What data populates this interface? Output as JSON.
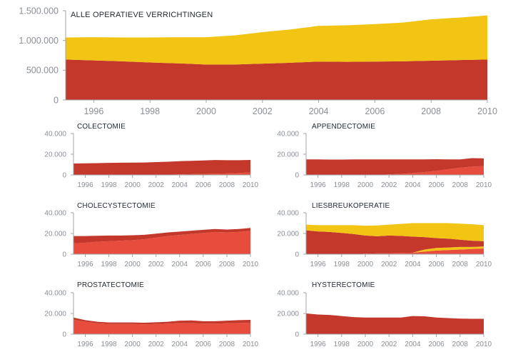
{
  "colors": {
    "top": "#f2c413",
    "mid": "#c3382b",
    "bottom": "#e84c3d",
    "axis": "#a0a4aa",
    "text": "#8a8f96",
    "title": "#222a33"
  },
  "chart_data": [
    {
      "type": "area",
      "title": "ALLE OPERATIEVE VERRICHTINGEN",
      "x": [
        1995,
        1996,
        1997,
        1998,
        1999,
        2000,
        2001,
        2002,
        2003,
        2004,
        2005,
        2006,
        2007,
        2008,
        2009,
        2010
      ],
      "stacking": "stacked",
      "series": [
        {
          "color": "#c3382b",
          "values": [
            680000,
            665000,
            650000,
            630000,
            615000,
            595000,
            595000,
            610000,
            625000,
            645000,
            640000,
            645000,
            650000,
            660000,
            670000,
            680000
          ]
        },
        {
          "color": "#f2c413",
          "values": [
            370000,
            390000,
            400000,
            420000,
            440000,
            460000,
            490000,
            530000,
            560000,
            600000,
            615000,
            630000,
            650000,
            695000,
            715000,
            740000
          ]
        }
      ],
      "y_ticks": [
        "0",
        "500.000",
        "1.000.000",
        "1.500.000"
      ],
      "y_tick_values": [
        0,
        500000,
        1000000,
        1500000
      ],
      "ylim": [
        0,
        1500000
      ],
      "x_ticks": [
        "1996",
        "1998",
        "2000",
        "2002",
        "2004",
        "2006",
        "2008",
        "2010"
      ],
      "x_tick_values": [
        1996,
        1998,
        2000,
        2002,
        2004,
        2006,
        2008,
        2010
      ]
    },
    {
      "type": "area",
      "title": "COLECTOMIE",
      "x": [
        1995,
        1996,
        1997,
        1998,
        1999,
        2000,
        2001,
        2002,
        2003,
        2004,
        2005,
        2006,
        2007,
        2008,
        2009,
        2010
      ],
      "stacking": "stacked",
      "series": [
        {
          "color": "#e84c3d",
          "values": [
            0,
            0,
            0,
            0,
            0,
            0,
            0,
            0,
            200,
            500,
            800,
            1000,
            1200,
            1500,
            1800,
            2500
          ]
        },
        {
          "color": "#c3382b",
          "values": [
            11000,
            11200,
            11400,
            11600,
            11800,
            11900,
            12000,
            12400,
            12600,
            12800,
            12800,
            13000,
            13200,
            12700,
            12400,
            12000
          ]
        }
      ],
      "y_ticks": [
        "0",
        "20.000",
        "40.000"
      ],
      "y_tick_values": [
        0,
        20000,
        40000
      ],
      "ylim": [
        0,
        40000
      ],
      "x_ticks": [
        "1996",
        "1998",
        "2000",
        "2002",
        "2004",
        "2006",
        "2008",
        "2010"
      ],
      "x_tick_values": [
        1996,
        1998,
        2000,
        2002,
        2004,
        2006,
        2008,
        2010
      ]
    },
    {
      "type": "area",
      "title": "APPENDECTOMIE",
      "x": [
        1995,
        1996,
        1997,
        1998,
        1999,
        2000,
        2001,
        2002,
        2003,
        2004,
        2005,
        2006,
        2007,
        2008,
        2009,
        2010
      ],
      "stacking": "stacked",
      "series": [
        {
          "color": "#e84c3d",
          "values": [
            0,
            0,
            0,
            0,
            0,
            0,
            0,
            500,
            1000,
            1800,
            2800,
            4000,
            5500,
            7000,
            8000,
            8500
          ]
        },
        {
          "color": "#c3382b",
          "values": [
            15000,
            15000,
            14800,
            14800,
            15000,
            15000,
            15000,
            14500,
            14000,
            13200,
            12200,
            11200,
            9500,
            8000,
            8200,
            7500
          ]
        }
      ],
      "y_ticks": [
        "0",
        "20.000",
        "40.000"
      ],
      "y_tick_values": [
        0,
        20000,
        40000
      ],
      "ylim": [
        0,
        40000
      ],
      "x_ticks": [
        "1996",
        "1998",
        "2000",
        "2002",
        "2004",
        "2006",
        "2008",
        "2010"
      ],
      "x_tick_values": [
        1996,
        1998,
        2000,
        2002,
        2004,
        2006,
        2008,
        2010
      ]
    },
    {
      "type": "area",
      "title": "CHOLECYSTECTOMIE",
      "x": [
        1995,
        1996,
        1997,
        1998,
        1999,
        2000,
        2001,
        2002,
        2003,
        2004,
        2005,
        2006,
        2007,
        2008,
        2009,
        2010
      ],
      "stacking": "stacked",
      "series": [
        {
          "color": "#e84c3d",
          "values": [
            10500,
            11000,
            12000,
            12500,
            13000,
            13500,
            14500,
            16000,
            17500,
            18500,
            19500,
            20500,
            21500,
            21000,
            21500,
            22500
          ]
        },
        {
          "color": "#c3382b",
          "values": [
            7000,
            6500,
            5800,
            5500,
            5000,
            4800,
            4200,
            3800,
            3500,
            3300,
            3200,
            3000,
            2800,
            2800,
            2800,
            2800
          ]
        }
      ],
      "y_ticks": [
        "0",
        "20.000",
        "40.000"
      ],
      "y_tick_values": [
        0,
        20000,
        40000
      ],
      "ylim": [
        0,
        40000
      ],
      "x_ticks": [
        "1996",
        "1998",
        "2000",
        "2002",
        "2004",
        "2006",
        "2008",
        "2010"
      ],
      "x_tick_values": [
        1996,
        1998,
        2000,
        2002,
        2004,
        2006,
        2008,
        2010
      ]
    },
    {
      "type": "area",
      "title": "LIESBREUKOPERATIE",
      "x": [
        1995,
        1996,
        1997,
        1998,
        1999,
        2000,
        2001,
        2002,
        2003,
        2004,
        2005,
        2006,
        2007,
        2008,
        2009,
        2010
      ],
      "stacking": "stacked",
      "series": [
        {
          "color": "#e84c3d",
          "values": [
            0,
            0,
            0,
            0,
            0,
            500,
            800,
            1000,
            1200,
            1500,
            2500,
            3500,
            4000,
            4500,
            5000,
            5500
          ]
        },
        {
          "color": "#f2c413",
          "values": [
            0,
            0,
            0,
            0,
            0,
            0,
            0,
            0,
            0,
            0,
            2000,
            2500,
            2500,
            2500,
            2000,
            2000
          ]
        },
        {
          "color": "#c3382b",
          "values": [
            23000,
            22000,
            21500,
            20500,
            19500,
            17500,
            16500,
            17000,
            16500,
            15500,
            12000,
            9500,
            8500,
            7000,
            6000,
            5000
          ]
        },
        {
          "color": "#f2c413",
          "values": [
            5500,
            6000,
            6500,
            7500,
            8500,
            9500,
            10500,
            10500,
            11500,
            13000,
            13500,
            14500,
            15000,
            15500,
            16000,
            15500
          ]
        }
      ],
      "y_ticks": [
        "0",
        "20.000",
        "40.000"
      ],
      "y_tick_values": [
        0,
        20000,
        40000
      ],
      "ylim": [
        0,
        40000
      ],
      "x_ticks": [
        "1996",
        "1998",
        "2000",
        "2002",
        "2004",
        "2006",
        "2008",
        "2010"
      ],
      "x_tick_values": [
        1996,
        1998,
        2000,
        2002,
        2004,
        2006,
        2008,
        2010
      ]
    },
    {
      "type": "area",
      "title": "PROSTATECTOMIE",
      "x": [
        1995,
        1996,
        1997,
        1998,
        1999,
        2000,
        2001,
        2002,
        2003,
        2004,
        2005,
        2006,
        2007,
        2008,
        2009,
        2010
      ],
      "stacking": "stacked",
      "series": [
        {
          "color": "#e84c3d",
          "values": [
            14000,
            12000,
            10500,
            9800,
            9800,
            9800,
            9500,
            9800,
            10200,
            10600,
            10600,
            10200,
            10200,
            10500,
            10800,
            11000
          ]
        },
        {
          "color": "#c3382b",
          "values": [
            2000,
            1500,
            1500,
            1500,
            1500,
            1500,
            1500,
            1700,
            1800,
            2400,
            2700,
            2300,
            2300,
            2500,
            2700,
            2800
          ]
        }
      ],
      "y_ticks": [
        "0",
        "20.000",
        "40.000"
      ],
      "y_tick_values": [
        0,
        20000,
        40000
      ],
      "ylim": [
        0,
        40000
      ],
      "x_ticks": [
        "1996",
        "1998",
        "2000",
        "2002",
        "2004",
        "2006",
        "2008",
        "2010"
      ],
      "x_tick_values": [
        1996,
        1998,
        2000,
        2002,
        2004,
        2006,
        2008,
        2010
      ]
    },
    {
      "type": "area",
      "title": "HYSTERECTOMIE",
      "x": [
        1995,
        1996,
        1997,
        1998,
        1999,
        2000,
        2001,
        2002,
        2003,
        2004,
        2005,
        2006,
        2007,
        2008,
        2009,
        2010
      ],
      "stacking": "stacked",
      "series": [
        {
          "color": "#e84c3d",
          "values": [
            0,
            0,
            0,
            0,
            0,
            0,
            0,
            0,
            0,
            0,
            0,
            0,
            0,
            0,
            0,
            300
          ]
        },
        {
          "color": "#c3382b",
          "values": [
            20000,
            19000,
            18500,
            17500,
            16500,
            16000,
            16000,
            16000,
            16000,
            17500,
            17200,
            16000,
            15500,
            15000,
            14800,
            14500
          ]
        }
      ],
      "y_ticks": [
        "0",
        "20.000",
        "40.000"
      ],
      "y_tick_values": [
        0,
        20000,
        40000
      ],
      "ylim": [
        0,
        40000
      ],
      "x_ticks": [
        "1996",
        "1998",
        "2000",
        "2002",
        "2004",
        "2006",
        "2008",
        "2010"
      ],
      "x_tick_values": [
        1996,
        1998,
        2000,
        2002,
        2004,
        2006,
        2008,
        2010
      ]
    }
  ]
}
